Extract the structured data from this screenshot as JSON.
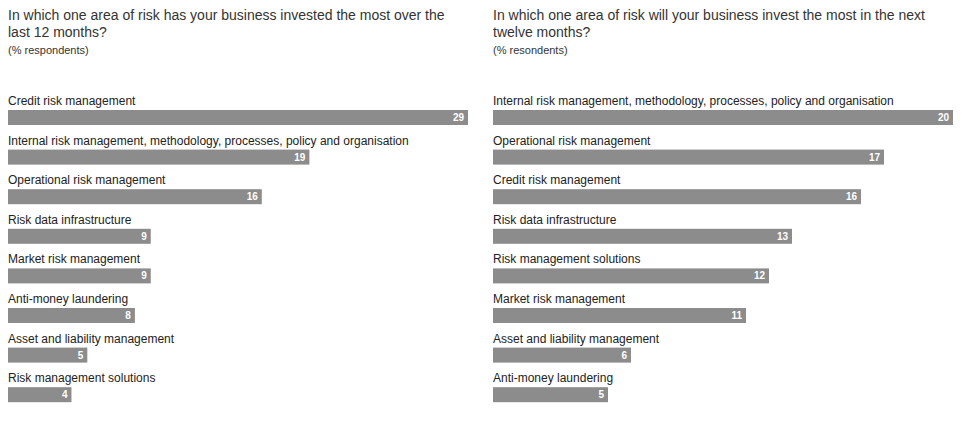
{
  "chart_data": [
    {
      "type": "bar",
      "orientation": "horizontal",
      "title": "In which one area of risk has your business invested the most over the last 12 months?",
      "subtitle": "(% respondents)",
      "categories": [
        "Credit risk management",
        "Internal risk management, methodology, processes, policy and organisation",
        "Operational risk management",
        "Risk data infrastructure",
        "Market risk management",
        "Anti-money laundering",
        "Asset and liability management",
        "Risk management solutions"
      ],
      "values": [
        29,
        19,
        16,
        9,
        9,
        8,
        5,
        4
      ],
      "color": "#8c8c8c",
      "xlim": [
        0,
        29
      ],
      "data_labels": true,
      "tick_labels": false
    },
    {
      "type": "bar",
      "orientation": "horizontal",
      "title": "In which one area of risk will your business invest the most in the next twelve months?",
      "subtitle": "(% resondents)",
      "categories": [
        "Internal risk management, methodology, processes, policy and organisation",
        "Operational risk management",
        "Credit risk management",
        "Risk data infrastructure",
        "Risk management solutions",
        "Market risk management",
        "Asset and liability management",
        "Anti-money laundering"
      ],
      "values": [
        20,
        17,
        16,
        13,
        12,
        11,
        6,
        5
      ],
      "color": "#8c8c8c",
      "xlim": [
        0,
        20
      ],
      "data_labels": true,
      "tick_labels": false
    }
  ]
}
